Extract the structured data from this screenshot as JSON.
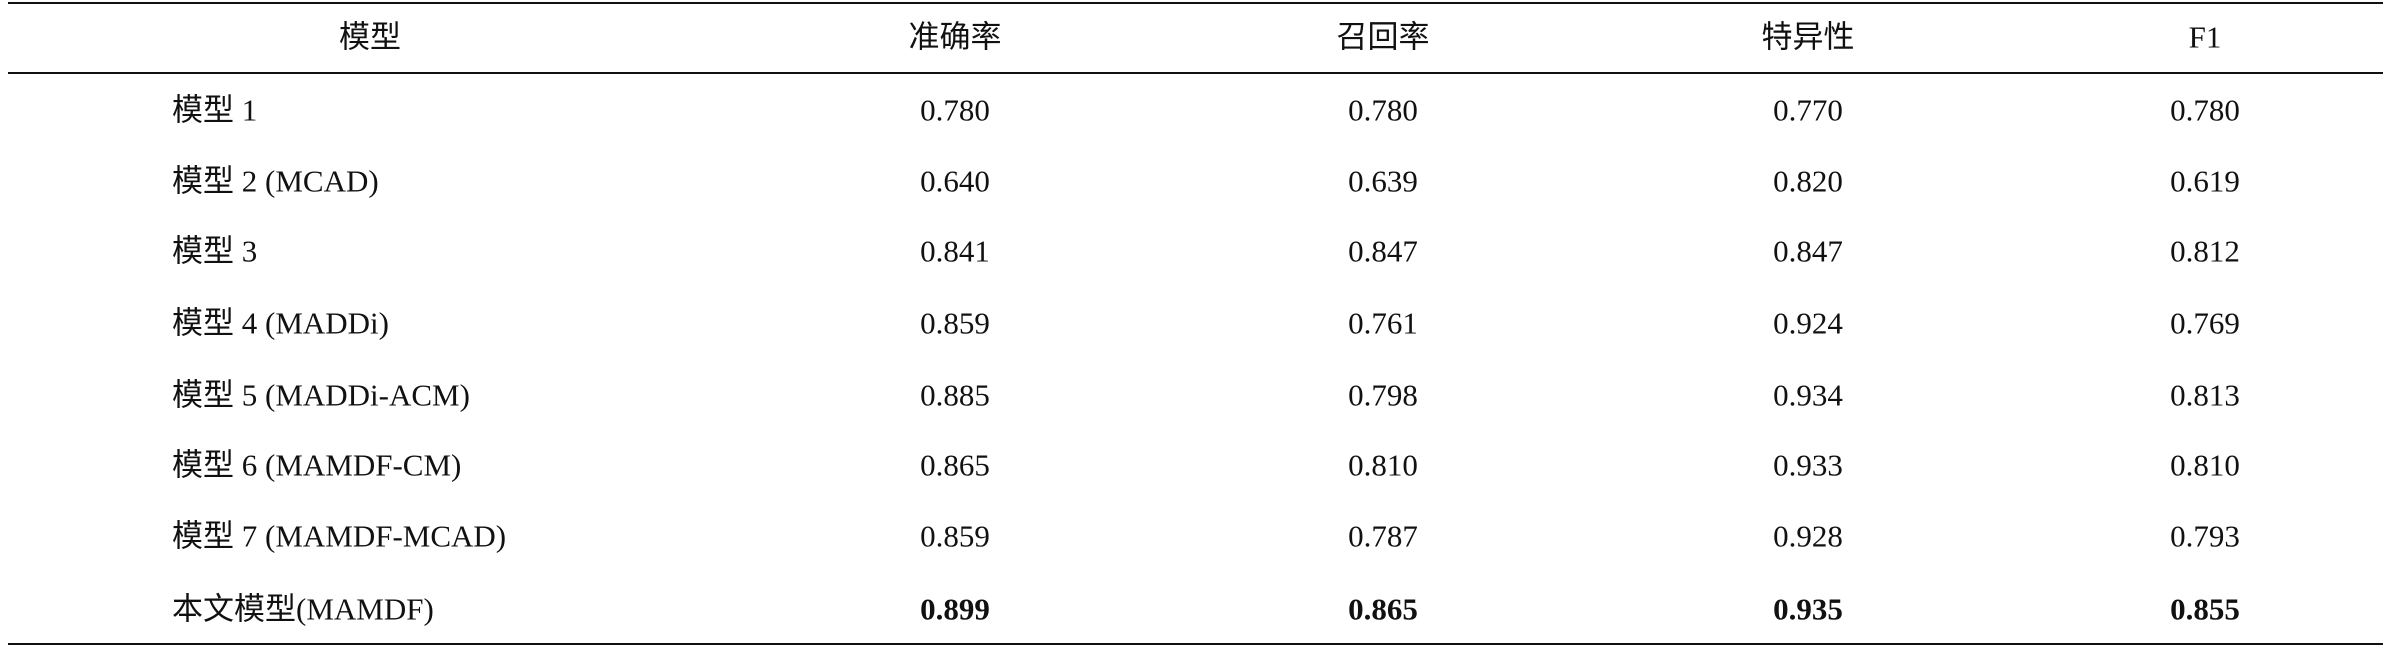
{
  "table": {
    "header": [
      "模型",
      "准确率",
      "召回率",
      "特异性",
      "F1"
    ],
    "rows": [
      [
        "模型 1",
        "0.780",
        "0.780",
        "0.770",
        "0.780"
      ],
      [
        "模型 2 (MCAD)",
        "0.640",
        "0.639",
        "0.820",
        "0.619"
      ],
      [
        "模型 3",
        "0.841",
        "0.847",
        "0.847",
        "0.812"
      ],
      [
        "模型 4 (MADDi)",
        "0.859",
        "0.761",
        "0.924",
        "0.769"
      ],
      [
        "模型 5 (MADDi-ACM)",
        "0.885",
        "0.798",
        "0.934",
        "0.813"
      ],
      [
        "模型 6 (MAMDF-CM)",
        "0.865",
        "0.810",
        "0.933",
        "0.810"
      ],
      [
        "模型 7 (MAMDF-MCAD)",
        "0.859",
        "0.787",
        "0.928",
        "0.793"
      ],
      [
        "本文模型(MAMDF)",
        "0.899",
        "0.865",
        "0.935",
        "0.855"
      ]
    ]
  }
}
